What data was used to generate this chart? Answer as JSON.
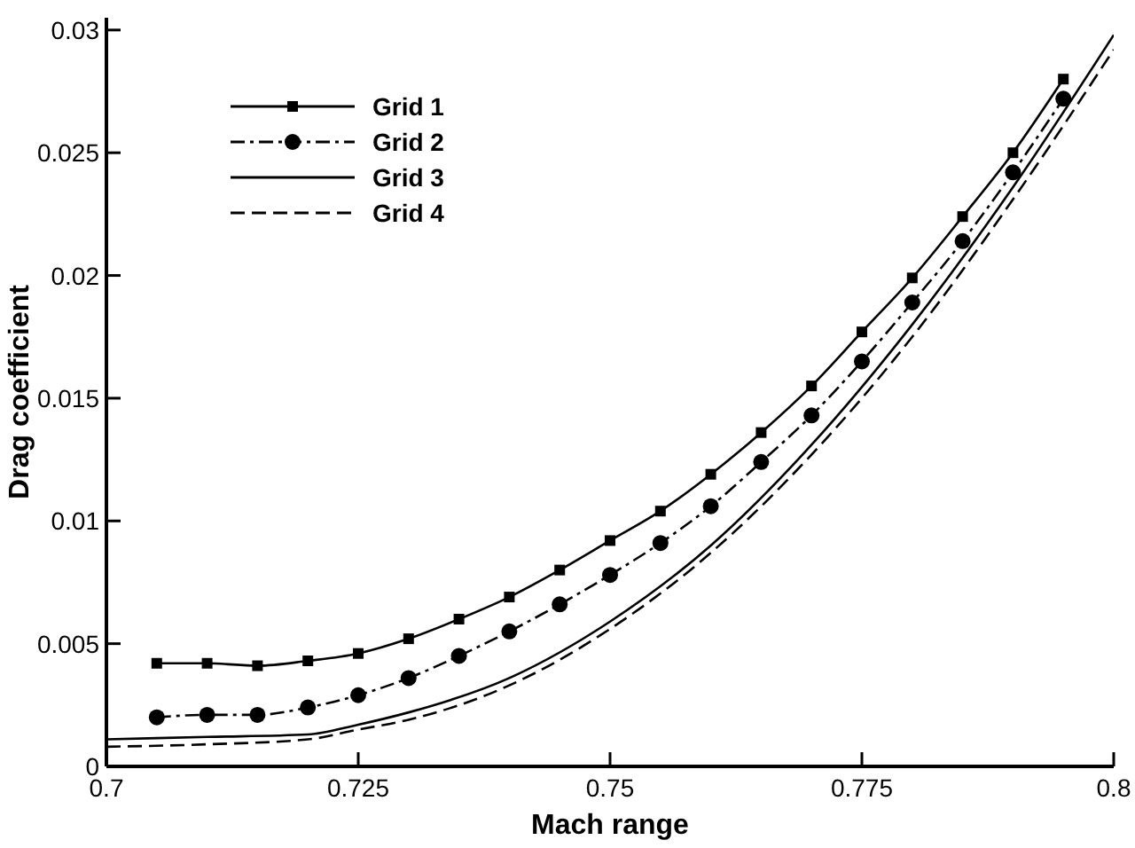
{
  "chart_data": {
    "type": "line",
    "xlabel": "Mach range",
    "ylabel": "Drag coefficient",
    "xlim": [
      0.7,
      0.8
    ],
    "ylim": [
      0,
      0.0305
    ],
    "xticks": [
      0.7,
      0.725,
      0.75,
      0.775,
      0.8
    ],
    "yticks": [
      0,
      0.005,
      0.01,
      0.015,
      0.02,
      0.025,
      0.03
    ],
    "grid": false,
    "legend": "top left",
    "series": [
      {
        "name": "Grid 1",
        "color": "#000000",
        "marker": "square",
        "line_style": "solid",
        "x": [
          0.705,
          0.71,
          0.715,
          0.72,
          0.725,
          0.73,
          0.735,
          0.74,
          0.745,
          0.75,
          0.755,
          0.76,
          0.765,
          0.77,
          0.775,
          0.78,
          0.785,
          0.79,
          0.795
        ],
        "values": [
          0.0042,
          0.0042,
          0.0041,
          0.0043,
          0.0046,
          0.0052,
          0.006,
          0.0069,
          0.008,
          0.0092,
          0.0104,
          0.0119,
          0.0136,
          0.0155,
          0.0177,
          0.0199,
          0.0224,
          0.025,
          0.028
        ]
      },
      {
        "name": "Grid 2",
        "color": "#000000",
        "marker": "circle",
        "line_style": "dashdot",
        "x": [
          0.705,
          0.71,
          0.715,
          0.72,
          0.725,
          0.73,
          0.735,
          0.74,
          0.745,
          0.75,
          0.755,
          0.76,
          0.765,
          0.77,
          0.775,
          0.78,
          0.785,
          0.79,
          0.795
        ],
        "values": [
          0.002,
          0.0021,
          0.0021,
          0.0024,
          0.0029,
          0.0036,
          0.0045,
          0.0055,
          0.0066,
          0.0078,
          0.0091,
          0.0106,
          0.0124,
          0.0143,
          0.0165,
          0.0189,
          0.0214,
          0.0242,
          0.0272
        ]
      },
      {
        "name": "Grid 3",
        "color": "#000000",
        "marker": "none",
        "line_style": "solid",
        "x": [
          0.7,
          0.71,
          0.72,
          0.725,
          0.73,
          0.74,
          0.75,
          0.76,
          0.77,
          0.78,
          0.79,
          0.8
        ],
        "values": [
          0.0011,
          0.0012,
          0.0013,
          0.0017,
          0.0022,
          0.0036,
          0.0059,
          0.009,
          0.0131,
          0.018,
          0.0236,
          0.0298
        ]
      },
      {
        "name": "Grid 4",
        "color": "#000000",
        "marker": "none",
        "line_style": "dashed",
        "x": [
          0.7,
          0.71,
          0.72,
          0.725,
          0.73,
          0.74,
          0.75,
          0.76,
          0.77,
          0.78,
          0.79,
          0.8
        ],
        "values": [
          0.0008,
          0.0009,
          0.0011,
          0.0015,
          0.0019,
          0.0033,
          0.0056,
          0.0087,
          0.0127,
          0.0175,
          0.0231,
          0.0292
        ]
      }
    ]
  }
}
